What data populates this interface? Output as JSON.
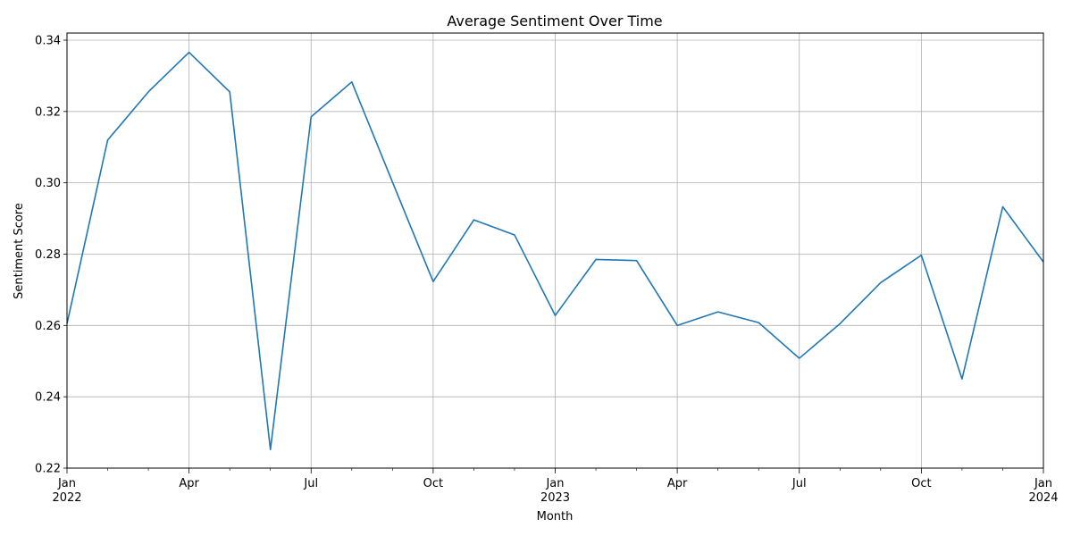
{
  "chart_data": {
    "type": "line",
    "title": "Average Sentiment Over Time",
    "xlabel": "Month",
    "ylabel": "Sentiment Score",
    "ylim": [
      0.22,
      0.342
    ],
    "xlim": [
      "2022-01",
      "2024-01"
    ],
    "grid": true,
    "y_ticks": [
      "0.22",
      "0.24",
      "0.26",
      "0.28",
      "0.30",
      "0.32",
      "0.34"
    ],
    "x_ticks": [
      {
        "month": "2022-01",
        "label": "Jan",
        "sublabel": "2022"
      },
      {
        "month": "2022-04",
        "label": "Apr",
        "sublabel": ""
      },
      {
        "month": "2022-07",
        "label": "Jul",
        "sublabel": ""
      },
      {
        "month": "2022-10",
        "label": "Oct",
        "sublabel": ""
      },
      {
        "month": "2023-01",
        "label": "Jan",
        "sublabel": "2023"
      },
      {
        "month": "2023-04",
        "label": "Apr",
        "sublabel": ""
      },
      {
        "month": "2023-07",
        "label": "Jul",
        "sublabel": ""
      },
      {
        "month": "2023-10",
        "label": "Oct",
        "sublabel": ""
      },
      {
        "month": "2024-01",
        "label": "Jan",
        "sublabel": "2024"
      }
    ],
    "x": [
      "2022-01",
      "2022-02",
      "2022-03",
      "2022-04",
      "2022-05",
      "2022-06",
      "2022-07",
      "2022-08",
      "2022-09",
      "2022-10",
      "2022-11",
      "2022-12",
      "2023-01",
      "2023-02",
      "2023-03",
      "2023-04",
      "2023-05",
      "2023-06",
      "2023-07",
      "2023-08",
      "2023-09",
      "2023-10",
      "2023-11",
      "2023-12",
      "2024-01"
    ],
    "series": [
      {
        "values": [
          0.2605,
          0.312,
          0.3255,
          0.3366,
          0.3255,
          0.2252,
          0.3185,
          0.3283,
          0.3002,
          0.2723,
          0.2896,
          0.2854,
          0.2628,
          0.2785,
          0.2782,
          0.26,
          0.2638,
          0.2608,
          0.2508,
          0.2605,
          0.272,
          0.2797,
          0.245,
          0.2933,
          0.2778
        ],
        "color": "#1f77b4"
      }
    ]
  }
}
